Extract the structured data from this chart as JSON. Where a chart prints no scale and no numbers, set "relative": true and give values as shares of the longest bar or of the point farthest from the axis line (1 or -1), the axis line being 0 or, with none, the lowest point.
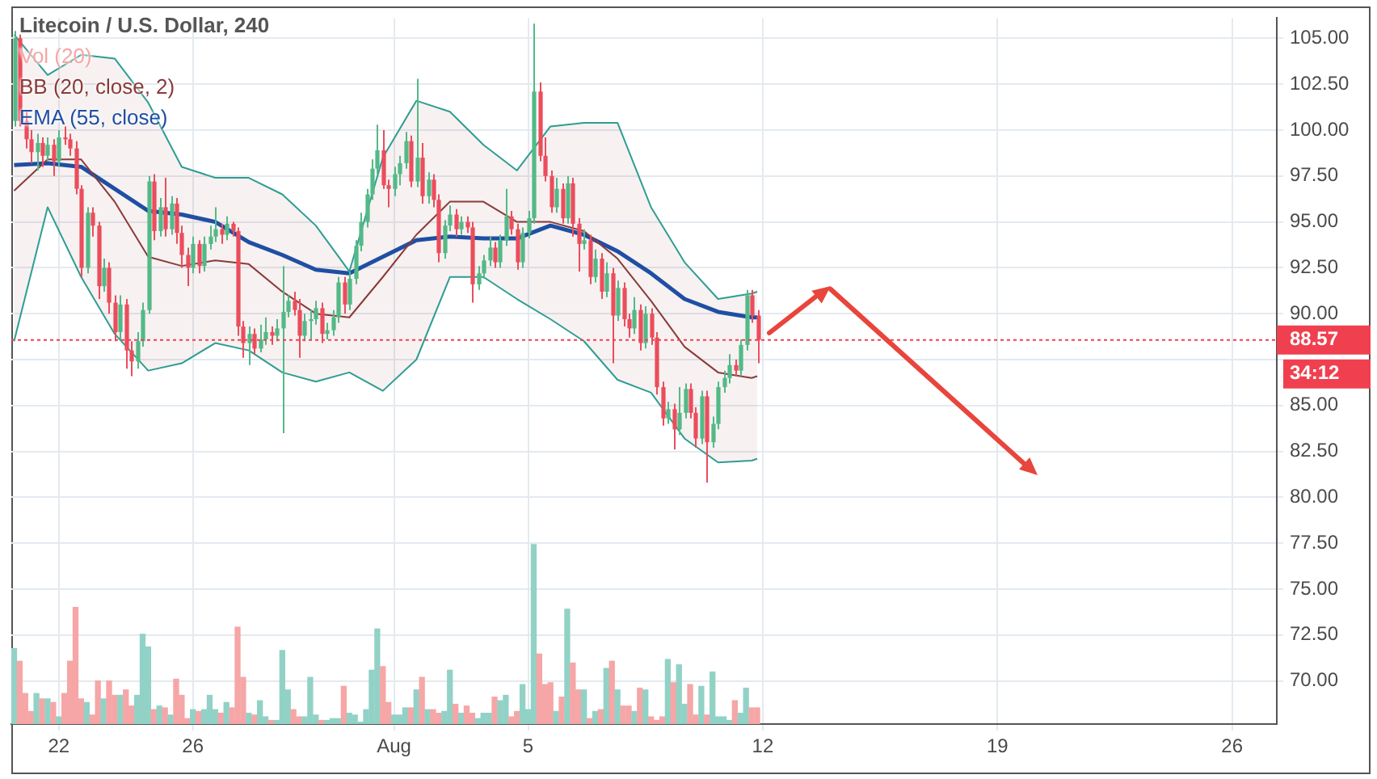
{
  "chart_data": [
    {
      "type": "candlestick",
      "title": "Litecoin / U.S. Dollar, 240",
      "legend": "top left",
      "grid": true,
      "x": [
        "--07-20T16:00",
        "--07-20T20:00",
        "--07-21T00:00",
        "--07-21T04:00",
        "--07-21T08:00",
        "--07-21T12:00",
        "--07-21T16:00",
        "--07-21T20:00",
        "--07-22T00:00",
        "--07-22T04:00",
        "--07-22T08:00",
        "--07-22T12:00",
        "--07-22T16:00",
        "--07-22T20:00",
        "--07-23T00:00",
        "--07-23T04:00",
        "--07-23T08:00",
        "--07-23T12:00",
        "--07-23T16:00",
        "--07-23T20:00",
        "--07-24T00:00",
        "--07-24T04:00",
        "--07-24T08:00",
        "--07-24T12:00",
        "--07-24T16:00",
        "--07-24T20:00",
        "--07-25T00:00",
        "--07-25T04:00",
        "--07-25T08:00",
        "--07-25T12:00",
        "--07-25T16:00",
        "--07-25T20:00",
        "--07-26T00:00",
        "--07-26T04:00",
        "--07-26T08:00",
        "--07-26T12:00",
        "--07-26T16:00",
        "--07-26T20:00",
        "--07-27T00:00",
        "--07-27T04:00",
        "--07-27T08:00",
        "--07-27T12:00",
        "--07-27T16:00",
        "--07-27T20:00",
        "--07-28T00:00",
        "--07-28T04:00",
        "--07-28T08:00",
        "--07-28T12:00",
        "--07-28T16:00",
        "--07-28T20:00",
        "--07-29T00:00",
        "--07-29T04:00",
        "--07-29T08:00",
        "--07-29T12:00",
        "--07-29T16:00",
        "--07-29T20:00",
        "--07-30T00:00",
        "--07-30T04:00",
        "--07-30T08:00",
        "--07-30T12:00",
        "--07-30T16:00",
        "--07-30T20:00",
        "--07-31T00:00",
        "--07-31T04:00",
        "--07-31T08:00",
        "--07-31T12:00",
        "--07-31T16:00",
        "--07-31T20:00",
        "--08-01T00:00",
        "--08-01T04:00",
        "--08-01T08:00",
        "--08-01T12:00",
        "--08-01T16:00",
        "--08-01T20:00",
        "--08-02T00:00",
        "--08-02T04:00",
        "--08-02T08:00",
        "--08-02T12:00",
        "--08-02T16:00",
        "--08-02T20:00",
        "--08-03T00:00",
        "--08-03T04:00",
        "--08-03T08:00",
        "--08-03T12:00",
        "--08-03T16:00",
        "--08-03T20:00",
        "--08-04T00:00",
        "--08-04T04:00",
        "--08-04T08:00",
        "--08-04T12:00",
        "--08-04T16:00",
        "--08-04T20:00",
        "--08-05T00:00",
        "--08-05T04:00",
        "--08-05T08:00",
        "--08-05T12:00",
        "--08-05T16:00",
        "--08-05T20:00",
        "--08-06T00:00",
        "--08-06T04:00",
        "--08-06T08:00",
        "--08-06T12:00",
        "--08-06T16:00",
        "--08-06T20:00",
        "--08-07T00:00",
        "--08-07T04:00",
        "--08-07T08:00",
        "--08-07T12:00",
        "--08-07T16:00",
        "--08-07T20:00",
        "--08-08T00:00",
        "--08-08T04:00",
        "--08-08T08:00",
        "--08-08T12:00",
        "--08-08T16:00",
        "--08-08T20:00",
        "--08-09T00:00",
        "--08-09T04:00",
        "--08-09T08:00",
        "--08-09T12:00",
        "--08-09T16:00",
        "--08-09T20:00",
        "--08-10T00:00",
        "--08-10T04:00",
        "--08-10T08:00",
        "--08-10T12:00",
        "--08-10T16:00",
        "--08-10T20:00",
        "--08-11T00:00",
        "--08-11T04:00",
        "--08-11T08:00",
        "--08-11T12:00",
        "--08-11T16:00",
        "--08-11T20:00"
      ],
      "ohlc": [
        [
          100.5,
          105.4,
          100.2,
          105.0
        ],
        [
          105.0,
          105.2,
          100.2,
          100.5
        ],
        [
          100.5,
          101.0,
          99.0,
          99.5
        ],
        [
          99.5,
          100.0,
          98.2,
          98.8
        ],
        [
          98.8,
          99.8,
          97.8,
          99.3
        ],
        [
          99.3,
          99.6,
          98.0,
          98.6
        ],
        [
          98.6,
          99.6,
          98.3,
          99.2
        ],
        [
          99.2,
          99.5,
          97.5,
          98.3
        ],
        [
          98.3,
          100.0,
          98.0,
          99.6
        ],
        [
          99.6,
          100.2,
          99.2,
          99.5
        ],
        [
          99.5,
          99.8,
          98.6,
          99.0
        ],
        [
          99.0,
          99.4,
          96.5,
          96.8
        ],
        [
          96.8,
          97.0,
          92.0,
          92.5
        ],
        [
          92.5,
          95.8,
          92.2,
          95.5
        ],
        [
          95.5,
          95.8,
          94.2,
          94.8
        ],
        [
          94.8,
          95.0,
          90.8,
          91.5
        ],
        [
          91.5,
          93.0,
          91.2,
          92.5
        ],
        [
          92.5,
          92.8,
          90.0,
          90.6
        ],
        [
          90.6,
          91.0,
          88.5,
          89.0
        ],
        [
          89.0,
          91.0,
          88.6,
          90.5
        ],
        [
          90.5,
          90.8,
          87.0,
          88.0
        ],
        [
          88.0,
          88.5,
          86.6,
          87.4
        ],
        [
          87.4,
          89.0,
          87.0,
          88.5
        ],
        [
          88.5,
          90.6,
          88.2,
          90.2
        ],
        [
          90.2,
          97.5,
          90.0,
          97.2
        ],
        [
          97.2,
          97.6,
          94.0,
          94.5
        ],
        [
          94.5,
          96.3,
          94.2,
          95.8
        ],
        [
          95.8,
          97.4,
          94.2,
          94.6
        ],
        [
          94.6,
          96.4,
          94.3,
          96.0
        ],
        [
          96.0,
          96.3,
          93.8,
          94.4
        ],
        [
          94.4,
          94.8,
          92.5,
          93.2
        ],
        [
          93.2,
          93.6,
          91.5,
          92.5
        ],
        [
          92.5,
          94.2,
          92.2,
          93.8
        ],
        [
          93.8,
          94.0,
          92.2,
          92.6
        ],
        [
          92.6,
          94.2,
          92.3,
          93.8
        ],
        [
          93.8,
          94.8,
          93.5,
          94.2
        ],
        [
          94.2,
          95.8,
          93.9,
          94.6
        ],
        [
          94.6,
          94.9,
          93.8,
          94.3
        ],
        [
          94.3,
          95.3,
          94.0,
          94.9
        ],
        [
          94.9,
          95.0,
          94.2,
          94.5
        ],
        [
          94.5,
          94.7,
          88.8,
          89.3
        ],
        [
          89.3,
          89.6,
          87.6,
          88.4
        ],
        [
          88.4,
          89.3,
          87.2,
          88.9
        ],
        [
          88.9,
          89.2,
          87.8,
          88.1
        ],
        [
          88.1,
          89.4,
          87.9,
          88.6
        ],
        [
          88.6,
          89.8,
          88.3,
          89.0
        ],
        [
          89.0,
          89.3,
          88.3,
          88.8
        ],
        [
          88.8,
          89.7,
          88.5,
          89.2
        ],
        [
          89.2,
          92.6,
          83.5,
          90.1
        ],
        [
          90.1,
          91.0,
          89.8,
          90.7
        ],
        [
          90.7,
          91.2,
          89.9,
          90.2
        ],
        [
          90.2,
          90.8,
          87.6,
          88.8
        ],
        [
          88.8,
          90.0,
          88.5,
          89.6
        ],
        [
          89.6,
          90.2,
          88.6,
          89.7
        ],
        [
          89.7,
          90.7,
          89.4,
          90.3
        ],
        [
          90.3,
          90.6,
          88.4,
          88.9
        ],
        [
          88.9,
          89.5,
          88.6,
          89.1
        ],
        [
          89.1,
          90.2,
          88.8,
          89.8
        ],
        [
          89.8,
          92.0,
          89.5,
          91.7
        ],
        [
          91.7,
          92.0,
          90.0,
          90.5
        ],
        [
          90.5,
          92.3,
          90.2,
          91.9
        ],
        [
          91.9,
          94.0,
          91.6,
          93.7
        ],
        [
          93.7,
          95.5,
          93.4,
          95.0
        ],
        [
          95.0,
          96.8,
          94.7,
          96.5
        ],
        [
          96.5,
          98.4,
          96.2,
          97.9
        ],
        [
          97.9,
          100.3,
          97.6,
          98.9
        ],
        [
          98.9,
          100.0,
          96.8,
          97.0
        ],
        [
          97.0,
          97.3,
          95.8,
          96.8
        ],
        [
          96.8,
          98.0,
          96.4,
          97.6
        ],
        [
          97.6,
          98.6,
          97.0,
          98.2
        ],
        [
          98.2,
          99.9,
          97.9,
          99.4
        ],
        [
          99.4,
          99.7,
          96.9,
          97.2
        ],
        [
          97.2,
          102.8,
          96.9,
          98.5
        ],
        [
          98.5,
          99.3,
          96.0,
          96.4
        ],
        [
          96.4,
          97.7,
          96.0,
          97.3
        ],
        [
          97.3,
          97.6,
          95.8,
          96.2
        ],
        [
          96.2,
          96.5,
          92.8,
          93.3
        ],
        [
          93.3,
          95.1,
          93.0,
          94.8
        ],
        [
          94.8,
          95.9,
          94.5,
          95.4
        ],
        [
          95.4,
          95.7,
          94.2,
          94.6
        ],
        [
          94.6,
          95.3,
          94.3,
          95.0
        ],
        [
          95.0,
          95.3,
          94.4,
          94.7
        ],
        [
          94.7,
          95.0,
          90.6,
          91.6
        ],
        [
          91.6,
          92.6,
          91.3,
          92.2
        ],
        [
          92.2,
          93.2,
          91.9,
          92.9
        ],
        [
          92.9,
          94.2,
          92.6,
          93.6
        ],
        [
          93.6,
          93.9,
          92.5,
          92.8
        ],
        [
          92.8,
          94.3,
          92.5,
          94.0
        ],
        [
          94.0,
          96.8,
          93.7,
          95.3
        ],
        [
          95.3,
          95.6,
          94.3,
          94.6
        ],
        [
          94.6,
          94.9,
          92.4,
          92.8
        ],
        [
          92.8,
          94.7,
          92.5,
          94.4
        ],
        [
          94.4,
          95.6,
          94.1,
          95.2
        ],
        [
          95.2,
          105.8,
          94.9,
          102.1
        ],
        [
          102.1,
          102.6,
          98.3,
          98.6
        ],
        [
          98.6,
          99.6,
          97.2,
          97.5
        ],
        [
          97.5,
          97.8,
          95.5,
          95.8
        ],
        [
          95.8,
          97.4,
          95.5,
          96.8
        ],
        [
          96.8,
          97.1,
          94.9,
          95.2
        ],
        [
          95.2,
          97.5,
          94.9,
          97.1
        ],
        [
          97.1,
          97.4,
          94.2,
          94.9
        ],
        [
          94.9,
          95.2,
          92.3,
          93.8
        ],
        [
          93.8,
          94.6,
          93.5,
          94.0
        ],
        [
          94.0,
          94.3,
          91.6,
          92.0
        ],
        [
          92.0,
          93.5,
          91.7,
          93.0
        ],
        [
          93.0,
          93.3,
          90.8,
          91.2
        ],
        [
          91.2,
          92.8,
          90.9,
          92.2
        ],
        [
          92.2,
          92.5,
          87.3,
          89.9
        ],
        [
          89.9,
          91.8,
          89.6,
          91.4
        ],
        [
          91.4,
          91.7,
          89.3,
          89.7
        ],
        [
          89.7,
          90.0,
          88.7,
          89.2
        ],
        [
          89.2,
          90.9,
          88.9,
          90.2
        ],
        [
          90.2,
          90.5,
          88.0,
          88.4
        ],
        [
          88.4,
          90.4,
          88.1,
          90.0
        ],
        [
          90.0,
          90.3,
          88.3,
          88.7
        ],
        [
          88.7,
          89.0,
          85.6,
          86.0
        ],
        [
          86.0,
          86.3,
          83.9,
          84.3
        ],
        [
          84.3,
          85.2,
          84.0,
          84.8
        ],
        [
          84.8,
          85.1,
          82.6,
          83.7
        ],
        [
          83.7,
          86.0,
          83.4,
          84.6
        ],
        [
          84.6,
          86.2,
          84.3,
          85.9
        ],
        [
          85.9,
          86.2,
          84.3,
          84.6
        ],
        [
          84.6,
          84.9,
          82.7,
          83.2
        ],
        [
          83.2,
          85.8,
          82.9,
          85.5
        ],
        [
          85.5,
          85.8,
          80.8,
          83.0
        ],
        [
          83.0,
          84.4,
          82.7,
          84.0
        ],
        [
          84.0,
          86.3,
          83.7,
          86.0
        ],
        [
          86.0,
          86.9,
          85.7,
          86.5
        ],
        [
          86.5,
          87.8,
          86.2,
          87.2
        ],
        [
          87.2,
          87.5,
          86.6,
          86.9
        ],
        [
          86.9,
          88.6,
          86.6,
          88.3
        ],
        [
          88.3,
          91.3,
          88.0,
          91.0
        ],
        [
          91.0,
          91.3,
          89.5,
          89.9
        ],
        [
          89.9,
          90.2,
          87.3,
          88.57
        ]
      ],
      "colors": [
        "#53b987",
        "#eb4d5c",
        "#eb4d5c",
        "#eb4d5c",
        "#53b987",
        "#eb4d5c",
        "#53b987",
        "#eb4d5c",
        "#53b987",
        "#eb4d5c",
        "#eb4d5c",
        "#eb4d5c",
        "#eb4d5c",
        "#53b987",
        "#eb4d5c",
        "#eb4d5c",
        "#53b987",
        "#eb4d5c",
        "#eb4d5c",
        "#53b987",
        "#eb4d5c",
        "#eb4d5c",
        "#53b987",
        "#53b987",
        "#53b987",
        "#eb4d5c",
        "#53b987",
        "#eb4d5c",
        "#53b987",
        "#eb4d5c",
        "#eb4d5c",
        "#eb4d5c",
        "#53b987",
        "#eb4d5c",
        "#53b987",
        "#53b987",
        "#53b987",
        "#eb4d5c",
        "#53b987",
        "#eb4d5c",
        "#eb4d5c",
        "#eb4d5c",
        "#53b987",
        "#eb4d5c",
        "#53b987",
        "#53b987",
        "#eb4d5c",
        "#53b987",
        "#53b987",
        "#53b987",
        "#eb4d5c",
        "#eb4d5c",
        "#53b987",
        "#53b987",
        "#53b987",
        "#eb4d5c",
        "#53b987",
        "#53b987",
        "#53b987",
        "#eb4d5c",
        "#53b987",
        "#53b987",
        "#53b987",
        "#53b987",
        "#53b987",
        "#53b987",
        "#eb4d5c",
        "#eb4d5c",
        "#53b987",
        "#53b987",
        "#53b987",
        "#eb4d5c",
        "#53b987",
        "#eb4d5c",
        "#53b987",
        "#eb4d5c",
        "#eb4d5c",
        "#53b987",
        "#53b987",
        "#eb4d5c",
        "#53b987",
        "#eb4d5c",
        "#eb4d5c",
        "#53b987",
        "#53b987",
        "#53b987",
        "#eb4d5c",
        "#53b987",
        "#53b987",
        "#eb4d5c",
        "#eb4d5c",
        "#53b987",
        "#53b987",
        "#53b987",
        "#eb4d5c",
        "#eb4d5c",
        "#eb4d5c",
        "#53b987",
        "#eb4d5c",
        "#53b987",
        "#eb4d5c",
        "#eb4d5c",
        "#53b987",
        "#eb4d5c",
        "#53b987",
        "#eb4d5c",
        "#53b987",
        "#eb4d5c",
        "#53b987",
        "#eb4d5c",
        "#eb4d5c",
        "#53b987",
        "#eb4d5c",
        "#53b987",
        "#eb4d5c",
        "#eb4d5c",
        "#eb4d5c",
        "#53b987",
        "#eb4d5c",
        "#53b987",
        "#53b987",
        "#eb4d5c",
        "#eb4d5c",
        "#53b987",
        "#eb4d5c",
        "#53b987",
        "#53b987",
        "#53b987",
        "#53b987",
        "#eb4d5c",
        "#53b987",
        "#53b987",
        "#eb4d5c",
        "#eb4d5c"
      ],
      "series": [
        {
          "type": "line",
          "color": "#2e9d93",
          "x": [
            "--07-20T16:00",
            "--07-21T16:00",
            "--07-22T16:00",
            "--07-23T16:00",
            "--07-24T16:00",
            "--07-25T16:00",
            "--07-26T16:00",
            "--07-27T16:00",
            "--07-28T16:00",
            "--07-29T16:00",
            "--07-30T16:00",
            "--07-31T16:00",
            "--08-01T16:00",
            "--08-02T16:00",
            "--08-03T16:00",
            "--08-04T16:00",
            "--08-05T16:00",
            "--08-06T16:00",
            "--08-07T16:00",
            "--08-08T16:00",
            "--08-09T16:00",
            "--08-10T16:00",
            "--08-11T16:00",
            "--08-11T20:00"
          ],
          "values": [
            105.2,
            103.0,
            104.1,
            103.9,
            101.5,
            98.0,
            97.4,
            97.4,
            96.5,
            94.8,
            92.3,
            98.5,
            101.6,
            101.0,
            99.2,
            97.8,
            100.2,
            100.4,
            100.4,
            95.8,
            92.8,
            90.8,
            91.1,
            91.2
          ]
        },
        {
          "name": "BB (20, close, 2)",
          "type": "line",
          "color": "#8b3a3a",
          "x": [
            "--07-20T16:00",
            "--07-21T16:00",
            "--07-22T16:00",
            "--07-23T16:00",
            "--07-24T16:00",
            "--07-25T16:00",
            "--07-26T16:00",
            "--07-27T16:00",
            "--07-28T16:00",
            "--07-29T16:00",
            "--07-30T16:00",
            "--07-31T16:00",
            "--08-01T16:00",
            "--08-02T16:00",
            "--08-03T16:00",
            "--08-04T16:00",
            "--08-05T16:00",
            "--08-06T16:00",
            "--08-07T16:00",
            "--08-08T16:00",
            "--08-09T16:00",
            "--08-10T16:00",
            "--08-11T16:00",
            "--08-11T20:00"
          ],
          "values": [
            96.7,
            98.4,
            98.4,
            96.1,
            93.1,
            92.6,
            92.9,
            92.7,
            91.2,
            90.0,
            89.8,
            92.0,
            94.3,
            96.1,
            96.1,
            95.0,
            95.0,
            94.5,
            93.0,
            90.7,
            88.2,
            86.8,
            86.5,
            86.6
          ],
          "upper": [
            105.2,
            103.0,
            104.1,
            103.9,
            101.5,
            98.0,
            97.4,
            97.4,
            96.5,
            94.8,
            92.3,
            98.5,
            101.6,
            101.0,
            99.2,
            97.8,
            100.2,
            100.4,
            100.4,
            95.8,
            92.8,
            90.8,
            91.1,
            91.2
          ],
          "lower": [
            88.5,
            95.8,
            92.0,
            88.9,
            86.9,
            87.3,
            88.4,
            88.0,
            86.8,
            86.3,
            86.8,
            85.8,
            87.5,
            92.0,
            92.0,
            90.8,
            89.7,
            88.5,
            86.4,
            85.7,
            83.2,
            81.9,
            82.0,
            82.1
          ]
        },
        {
          "type": "line",
          "color": "#2e9d93",
          "x": [
            "--07-20T16:00",
            "--07-21T16:00",
            "--07-22T16:00",
            "--07-23T16:00",
            "--07-24T16:00",
            "--07-25T16:00",
            "--07-26T16:00",
            "--07-27T16:00",
            "--07-28T16:00",
            "--07-29T16:00",
            "--07-30T16:00",
            "--07-31T16:00",
            "--08-01T16:00",
            "--08-02T16:00",
            "--08-03T16:00",
            "--08-04T16:00",
            "--08-05T16:00",
            "--08-06T16:00",
            "--08-07T16:00",
            "--08-08T16:00",
            "--08-09T16:00",
            "--08-10T16:00",
            "--08-11T16:00",
            "--08-11T20:00"
          ],
          "values": [
            88.5,
            95.8,
            92.0,
            88.9,
            86.9,
            87.3,
            88.4,
            88.0,
            86.8,
            86.3,
            86.8,
            85.8,
            87.5,
            92.0,
            92.0,
            90.8,
            89.7,
            88.5,
            86.4,
            85.7,
            83.2,
            81.9,
            82.0,
            82.1
          ]
        },
        {
          "name": "EMA (55, close)",
          "type": "line",
          "color": "#1f4fa3",
          "x": [
            "--07-20T16:00",
            "--07-21T16:00",
            "--07-22T16:00",
            "--07-23T16:00",
            "--07-24T16:00",
            "--07-25T16:00",
            "--07-26T16:00",
            "--07-27T16:00",
            "--07-28T16:00",
            "--07-29T16:00",
            "--07-30T16:00",
            "--07-31T16:00",
            "--08-01T16:00",
            "--08-02T16:00",
            "--08-03T16:00",
            "--08-04T16:00",
            "--08-05T16:00",
            "--08-06T16:00",
            "--08-07T16:00",
            "--08-08T16:00",
            "--08-09T16:00",
            "--08-10T16:00",
            "--08-11T16:00",
            "--08-11T20:00"
          ],
          "values": [
            98.1,
            98.2,
            98.0,
            96.8,
            95.6,
            95.4,
            95.0,
            93.9,
            93.2,
            92.4,
            92.2,
            93.1,
            94.0,
            94.2,
            94.1,
            94.1,
            94.8,
            94.3,
            93.4,
            92.2,
            90.8,
            90.1,
            89.8,
            89.8
          ]
        }
      ],
      "xlim": [
        "--07-20T14:00",
        "--08-27T08:00"
      ],
      "xticks": [
        {
          "value": "--07-22",
          "label": "22"
        },
        {
          "value": "--07-26",
          "label": "26"
        },
        {
          "value": "--08-01",
          "label": "Aug"
        },
        {
          "value": "--08-05",
          "label": "5"
        },
        {
          "value": "--08-12",
          "label": "12"
        },
        {
          "value": "--08-19",
          "label": "19"
        },
        {
          "value": "--08-26",
          "label": "26"
        }
      ],
      "ylim": [
        67.65,
        106.1
      ],
      "yticks": [
        {
          "value": 70,
          "label": "70.00"
        },
        {
          "value": 72.5,
          "label": "72.50"
        },
        {
          "value": 75,
          "label": "75.00"
        },
        {
          "value": 77.5,
          "label": "77.50"
        },
        {
          "value": 80,
          "label": "80.00"
        },
        {
          "value": 82.5,
          "label": "82.50"
        },
        {
          "value": 85,
          "label": "85.00"
        },
        {
          "value": 87.5,
          "label": null
        },
        {
          "value": 90,
          "label": "90.00"
        },
        {
          "value": 92.5,
          "label": "92.50"
        },
        {
          "value": 95,
          "label": "95.00"
        },
        {
          "value": 97.5,
          "label": "97.50"
        },
        {
          "value": 100,
          "label": "100.00"
        },
        {
          "value": 102.5,
          "label": "102.50"
        },
        {
          "value": 105,
          "label": "105.00"
        }
      ],
      "ref_lines": [
        {
          "axis": "y",
          "value": 88.57,
          "label": "88.57",
          "color": "#f0404f",
          "line_style": "dotted"
        }
      ],
      "annotations": [
        "34:12"
      ]
    },
    {
      "type": "bar",
      "relative": true,
      "legend": "top left",
      "x": [
        "--07-20T16:00",
        "--07-20T20:00",
        "--07-21T00:00",
        "--07-21T04:00",
        "--07-21T08:00",
        "--07-21T12:00",
        "--07-21T16:00",
        "--07-21T20:00",
        "--07-22T00:00",
        "--07-22T04:00",
        "--07-22T08:00",
        "--07-22T12:00",
        "--07-22T16:00",
        "--07-22T20:00",
        "--07-23T00:00",
        "--07-23T04:00",
        "--07-23T08:00",
        "--07-23T12:00",
        "--07-23T16:00",
        "--07-23T20:00",
        "--07-24T00:00",
        "--07-24T04:00",
        "--07-24T08:00",
        "--07-24T12:00",
        "--07-24T16:00",
        "--07-24T20:00",
        "--07-25T00:00",
        "--07-25T04:00",
        "--07-25T08:00",
        "--07-25T12:00",
        "--07-25T16:00",
        "--07-25T20:00",
        "--07-26T00:00",
        "--07-26T04:00",
        "--07-26T08:00",
        "--07-26T12:00",
        "--07-26T16:00",
        "--07-26T20:00",
        "--07-27T00:00",
        "--07-27T04:00",
        "--07-27T08:00",
        "--07-27T12:00",
        "--07-27T16:00",
        "--07-27T20:00",
        "--07-28T00:00",
        "--07-28T04:00",
        "--07-28T08:00",
        "--07-28T12:00",
        "--07-28T16:00",
        "--07-28T20:00",
        "--07-29T00:00",
        "--07-29T04:00",
        "--07-29T08:00",
        "--07-29T12:00",
        "--07-29T16:00",
        "--07-29T20:00",
        "--07-30T00:00",
        "--07-30T04:00",
        "--07-30T08:00",
        "--07-30T12:00",
        "--07-30T16:00",
        "--07-30T20:00",
        "--07-31T00:00",
        "--07-31T04:00",
        "--07-31T08:00",
        "--07-31T12:00",
        "--07-31T16:00",
        "--07-31T20:00",
        "--08-01T00:00",
        "--08-01T04:00",
        "--08-01T08:00",
        "--08-01T12:00",
        "--08-01T16:00",
        "--08-01T20:00",
        "--08-02T00:00",
        "--08-02T04:00",
        "--08-02T08:00",
        "--08-02T12:00",
        "--08-02T16:00",
        "--08-02T20:00",
        "--08-03T00:00",
        "--08-03T04:00",
        "--08-03T08:00",
        "--08-03T12:00",
        "--08-03T16:00",
        "--08-03T20:00",
        "--08-04T00:00",
        "--08-04T04:00",
        "--08-04T08:00",
        "--08-04T12:00",
        "--08-04T16:00",
        "--08-04T20:00",
        "--08-05T00:00",
        "--08-05T04:00",
        "--08-05T08:00",
        "--08-05T12:00",
        "--08-05T16:00",
        "--08-05T20:00",
        "--08-06T00:00",
        "--08-06T04:00",
        "--08-06T08:00",
        "--08-06T12:00",
        "--08-06T16:00",
        "--08-06T20:00",
        "--08-07T00:00",
        "--08-07T04:00",
        "--08-07T08:00",
        "--08-07T12:00",
        "--08-07T16:00",
        "--08-07T20:00",
        "--08-08T00:00",
        "--08-08T04:00",
        "--08-08T08:00",
        "--08-08T12:00",
        "--08-08T16:00",
        "--08-08T20:00",
        "--08-09T00:00",
        "--08-09T04:00",
        "--08-09T08:00",
        "--08-09T12:00",
        "--08-09T16:00",
        "--08-09T20:00",
        "--08-10T00:00",
        "--08-10T04:00",
        "--08-10T08:00",
        "--08-10T12:00",
        "--08-10T16:00",
        "--08-10T20:00",
        "--08-11T00:00",
        "--08-11T04:00",
        "--08-11T08:00",
        "--08-11T12:00",
        "--08-11T16:00",
        "--08-11T20:00"
      ],
      "xlim": [
        "--07-20T14:00",
        "--08-27T08:00"
      ],
      "series": [
        {
          "name": "Vol (20)",
          "values": [
            0.42,
            0.35,
            0.17,
            0.07,
            0.17,
            0.14,
            0.14,
            0.12,
            0.04,
            0.17,
            0.35,
            0.65,
            0.14,
            0.12,
            0.05,
            0.24,
            0.14,
            0.24,
            0.16,
            0.16,
            0.19,
            0.1,
            0.16,
            0.5,
            0.43,
            0.08,
            0.1,
            0.09,
            0.05,
            0.25,
            0.16,
            0.03,
            0.08,
            0.07,
            0.08,
            0.16,
            0.08,
            0.06,
            0.12,
            0.09,
            0.54,
            0.26,
            0.06,
            0.05,
            0.13,
            0.04,
            0.02,
            0.02,
            0.41,
            0.19,
            0.08,
            0.04,
            0.04,
            0.26,
            0.05,
            0.02,
            0.02,
            0.03,
            0.03,
            0.21,
            0.06,
            0.05,
            0.01,
            0.08,
            0.3,
            0.53,
            0.32,
            0.12,
            0.05,
            0.05,
            0.09,
            0.09,
            0.19,
            0.26,
            0.08,
            0.08,
            0.06,
            0.07,
            0.3,
            0.11,
            0.06,
            0.1,
            0.06,
            0.03,
            0.06,
            0.06,
            0.15,
            0.13,
            0.16,
            0.04,
            0.07,
            0.22,
            0.08,
            1,
            0.39,
            0.22,
            0.23,
            0.07,
            0.15,
            0.64,
            0.34,
            0.19,
            0.19,
            0.03,
            0.07,
            0.08,
            0.31,
            0.35,
            0.19,
            0.1,
            0.1,
            0.07,
            0.2,
            0.19,
            0.04,
            0.02,
            0.04,
            0.36,
            0.23,
            0.33,
            0.11,
            0.22,
            0.05,
            0.21,
            0.05,
            0.29,
            0.04,
            0.04,
            0.02,
            0.13,
            0.06,
            0.2,
            0.09,
            0.09
          ],
          "colors": [
            "#92d2c6",
            "#f6a6a6",
            "#f6a6a6",
            "#f6a6a6",
            "#92d2c6",
            "#f6a6a6",
            "#92d2c6",
            "#f6a6a6",
            "#92d2c6",
            "#f6a6a6",
            "#f6a6a6",
            "#f6a6a6",
            "#f6a6a6",
            "#92d2c6",
            "#f6a6a6",
            "#f6a6a6",
            "#92d2c6",
            "#f6a6a6",
            "#f6a6a6",
            "#92d2c6",
            "#f6a6a6",
            "#f6a6a6",
            "#92d2c6",
            "#92d2c6",
            "#92d2c6",
            "#f6a6a6",
            "#92d2c6",
            "#f6a6a6",
            "#92d2c6",
            "#f6a6a6",
            "#f6a6a6",
            "#f6a6a6",
            "#92d2c6",
            "#f6a6a6",
            "#92d2c6",
            "#92d2c6",
            "#92d2c6",
            "#f6a6a6",
            "#92d2c6",
            "#f6a6a6",
            "#f6a6a6",
            "#f6a6a6",
            "#92d2c6",
            "#f6a6a6",
            "#92d2c6",
            "#92d2c6",
            "#f6a6a6",
            "#92d2c6",
            "#92d2c6",
            "#92d2c6",
            "#f6a6a6",
            "#f6a6a6",
            "#92d2c6",
            "#92d2c6",
            "#92d2c6",
            "#f6a6a6",
            "#92d2c6",
            "#92d2c6",
            "#92d2c6",
            "#f6a6a6",
            "#92d2c6",
            "#92d2c6",
            "#92d2c6",
            "#92d2c6",
            "#92d2c6",
            "#92d2c6",
            "#f6a6a6",
            "#f6a6a6",
            "#92d2c6",
            "#92d2c6",
            "#92d2c6",
            "#f6a6a6",
            "#92d2c6",
            "#f6a6a6",
            "#92d2c6",
            "#f6a6a6",
            "#f6a6a6",
            "#92d2c6",
            "#92d2c6",
            "#f6a6a6",
            "#92d2c6",
            "#f6a6a6",
            "#f6a6a6",
            "#92d2c6",
            "#92d2c6",
            "#92d2c6",
            "#f6a6a6",
            "#92d2c6",
            "#92d2c6",
            "#f6a6a6",
            "#f6a6a6",
            "#92d2c6",
            "#92d2c6",
            "#92d2c6",
            "#f6a6a6",
            "#f6a6a6",
            "#f6a6a6",
            "#92d2c6",
            "#f6a6a6",
            "#92d2c6",
            "#f6a6a6",
            "#f6a6a6",
            "#92d2c6",
            "#f6a6a6",
            "#92d2c6",
            "#f6a6a6",
            "#92d2c6",
            "#f6a6a6",
            "#92d2c6",
            "#f6a6a6",
            "#f6a6a6",
            "#92d2c6",
            "#f6a6a6",
            "#92d2c6",
            "#f6a6a6",
            "#f6a6a6",
            "#f6a6a6",
            "#92d2c6",
            "#f6a6a6",
            "#92d2c6",
            "#92d2c6",
            "#f6a6a6",
            "#f6a6a6",
            "#92d2c6",
            "#f6a6a6",
            "#92d2c6",
            "#92d2c6",
            "#92d2c6",
            "#92d2c6",
            "#f6a6a6",
            "#92d2c6",
            "#92d2c6",
            "#f6a6a6",
            "#f6a6a6"
          ]
        }
      ]
    }
  ]
}
